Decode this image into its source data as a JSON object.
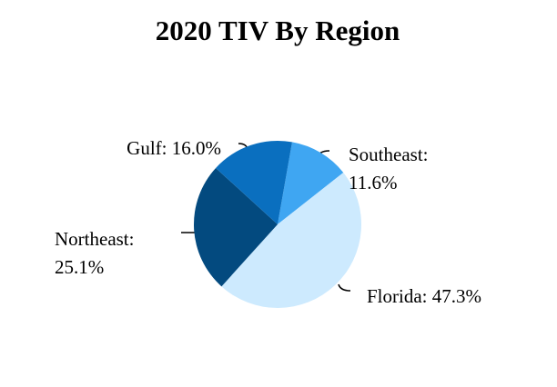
{
  "chart_data": {
    "type": "pie",
    "title": "2020 TIV By Region",
    "values": [
      11.6,
      47.3,
      25.1,
      16.0
    ],
    "value_labels": [
      "Southeast:\n11.6%",
      "Florida: 47.3%",
      "Northeast:\n25.1%",
      "Gulf: 16.0%"
    ],
    "colors": [
      "#3fa6f2",
      "#cdeafe",
      "#034a7f",
      "#0a6fbf"
    ]
  }
}
